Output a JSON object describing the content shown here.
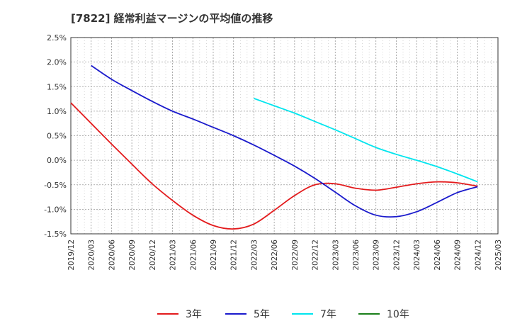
{
  "chart_data": {
    "type": "line",
    "title": "[7822]  経常利益マージンの平均値の推移",
    "xlabel": "",
    "ylabel": "",
    "ylim": [
      -1.5,
      2.5
    ],
    "y_ticks": [
      "2.5%",
      "2.0%",
      "1.5%",
      "1.0%",
      "0.5%",
      "0.0%",
      "-0.5%",
      "-1.0%",
      "-1.5%"
    ],
    "x_ticks": [
      "2019/12",
      "2020/03",
      "2020/06",
      "2020/09",
      "2020/12",
      "2021/03",
      "2021/06",
      "2021/09",
      "2021/12",
      "2022/03",
      "2022/06",
      "2022/09",
      "2022/12",
      "2023/03",
      "2023/06",
      "2023/09",
      "2023/12",
      "2024/03",
      "2024/06",
      "2024/09",
      "2024/12",
      "2025/03"
    ],
    "grid": true,
    "legend_position": "bottom",
    "series": [
      {
        "name": "3年",
        "color": "#e31a1c",
        "points": [
          [
            "2019/12",
            1.17
          ],
          [
            "2020/03",
            0.75
          ],
          [
            "2020/06",
            0.33
          ],
          [
            "2020/09",
            -0.08
          ],
          [
            "2020/12",
            -0.48
          ],
          [
            "2021/03",
            -0.82
          ],
          [
            "2021/06",
            -1.12
          ],
          [
            "2021/09",
            -1.33
          ],
          [
            "2021/12",
            -1.4
          ],
          [
            "2022/03",
            -1.3
          ],
          [
            "2022/06",
            -1.02
          ],
          [
            "2022/09",
            -0.72
          ],
          [
            "2022/12",
            -0.5
          ],
          [
            "2023/03",
            -0.48
          ],
          [
            "2023/06",
            -0.57
          ],
          [
            "2023/09",
            -0.61
          ],
          [
            "2023/12",
            -0.55
          ],
          [
            "2024/03",
            -0.48
          ],
          [
            "2024/06",
            -0.44
          ],
          [
            "2024/09",
            -0.46
          ],
          [
            "2024/12",
            -0.53
          ]
        ]
      },
      {
        "name": "5年",
        "color": "#1a1acc",
        "points": [
          [
            "2020/03",
            1.93
          ],
          [
            "2020/06",
            1.65
          ],
          [
            "2020/09",
            1.42
          ],
          [
            "2020/12",
            1.2
          ],
          [
            "2021/03",
            1.0
          ],
          [
            "2021/06",
            0.84
          ],
          [
            "2021/09",
            0.67
          ],
          [
            "2021/12",
            0.5
          ],
          [
            "2022/03",
            0.31
          ],
          [
            "2022/06",
            0.1
          ],
          [
            "2022/09",
            -0.12
          ],
          [
            "2022/12",
            -0.37
          ],
          [
            "2023/03",
            -0.65
          ],
          [
            "2023/06",
            -0.93
          ],
          [
            "2023/09",
            -1.12
          ],
          [
            "2023/12",
            -1.15
          ],
          [
            "2024/03",
            -1.05
          ],
          [
            "2024/06",
            -0.86
          ],
          [
            "2024/09",
            -0.66
          ],
          [
            "2024/12",
            -0.54
          ]
        ]
      },
      {
        "name": "7年",
        "color": "#00e5ee",
        "points": [
          [
            "2022/03",
            1.26
          ],
          [
            "2022/06",
            1.11
          ],
          [
            "2022/09",
            0.96
          ],
          [
            "2022/12",
            0.79
          ],
          [
            "2023/03",
            0.62
          ],
          [
            "2023/06",
            0.44
          ],
          [
            "2023/09",
            0.26
          ],
          [
            "2023/12",
            0.12
          ],
          [
            "2024/03",
            0.0
          ],
          [
            "2024/06",
            -0.13
          ],
          [
            "2024/09",
            -0.28
          ],
          [
            "2024/12",
            -0.44
          ]
        ]
      },
      {
        "name": "10年",
        "color": "#1a7f1a",
        "points": []
      }
    ]
  }
}
